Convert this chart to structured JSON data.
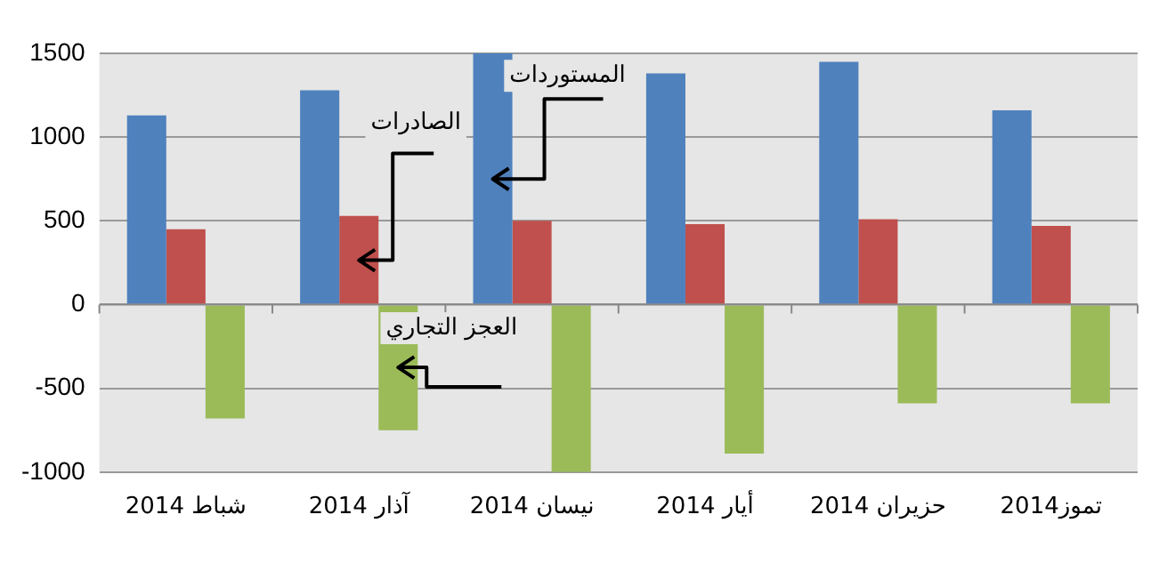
{
  "chart_data": {
    "type": "bar",
    "categories": [
      "شباط 2014",
      "آذار 2014",
      "نيسان 2014",
      "أيار 2014",
      "حزيران 2014",
      "تموز2014"
    ],
    "series": [
      {
        "name": "المستوردات",
        "color": "#4f81bd",
        "values": [
          1130,
          1280,
          1500,
          1380,
          1450,
          1160
        ]
      },
      {
        "name": "الصادرات",
        "color": "#c0504d",
        "values": [
          450,
          530,
          500,
          480,
          510,
          470
        ]
      },
      {
        "name": "العجز التجاري",
        "color": "#9bbb59",
        "values": [
          -680,
          -750,
          -1000,
          -890,
          -590,
          -590
        ]
      }
    ],
    "ylim": [
      -1000,
      1500
    ],
    "yticks": [
      -1000,
      -500,
      0,
      500,
      1000,
      1500
    ],
    "grid": "y",
    "legend": false
  }
}
